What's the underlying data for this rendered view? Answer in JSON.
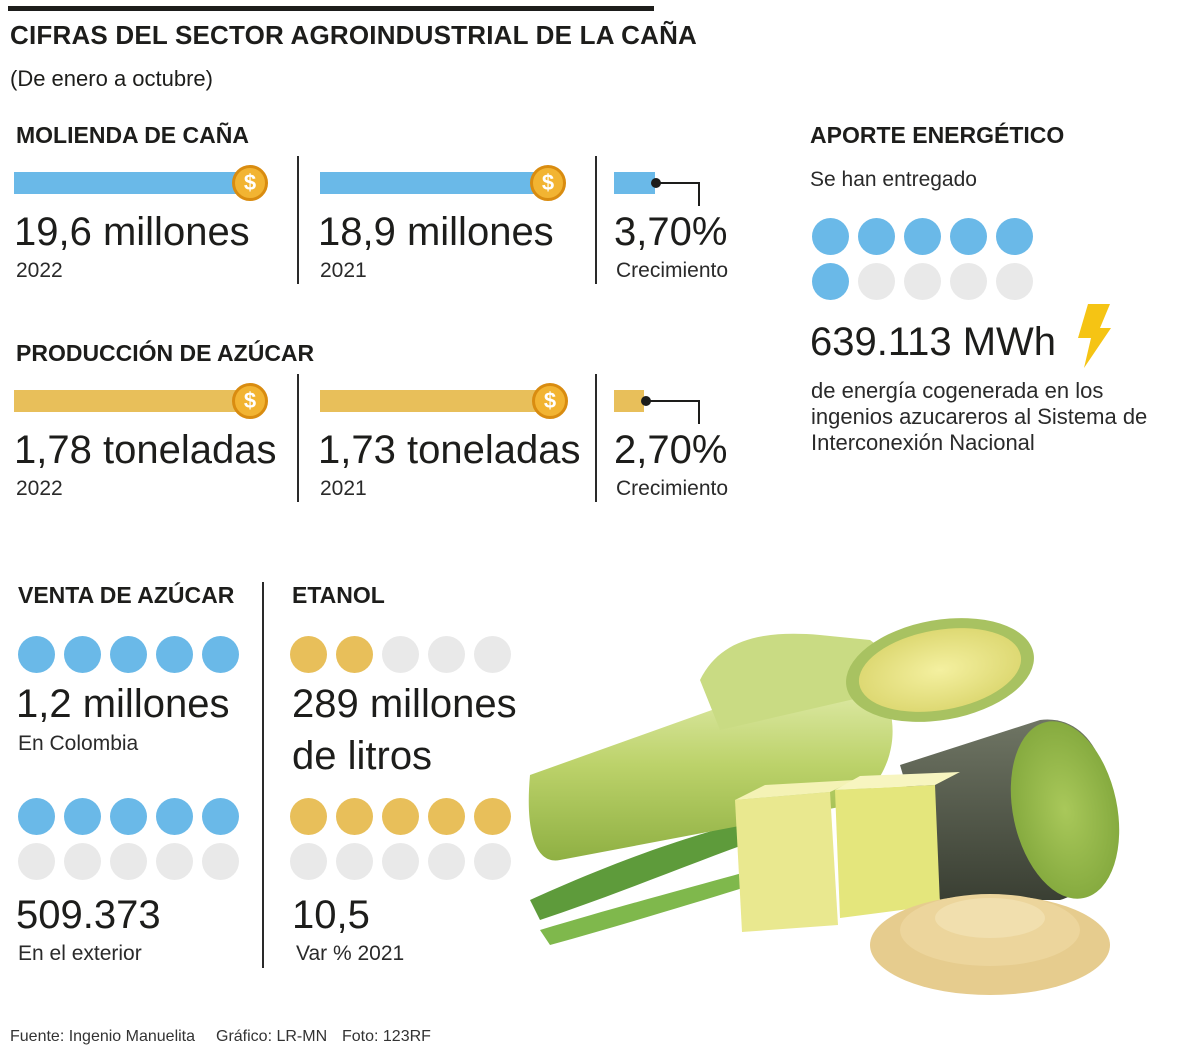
{
  "header": {
    "title": "CIFRAS DEL SECTOR AGROINDUSTRIAL DE LA CAÑA",
    "subtitle": "(De enero a octubre)"
  },
  "colors": {
    "blue": "#6ab9e8",
    "gold": "#e8bf5a",
    "empty": "#e9e9e9",
    "coin": "#f2b432"
  },
  "molienda": {
    "title": "MOLIENDA DE CAÑA",
    "y2022_value": "19,6 millones",
    "y2022_label": "2022",
    "y2021_value": "18,9 millones",
    "y2021_label": "2021",
    "growth_value": "3,70%",
    "growth_label": "Crecimiento",
    "coin_symbol": "$"
  },
  "produccion": {
    "title": "PRODUCCIÓN DE AZÚCAR",
    "y2022_value": "1,78 toneladas",
    "y2022_label": "2022",
    "y2021_value": "1,73 toneladas",
    "y2021_label": "2021",
    "growth_value": "2,70%",
    "growth_label": "Crecimiento",
    "coin_symbol": "$"
  },
  "aporte": {
    "title": "APORTE ENERGÉTICO",
    "intro": "Se han entregado",
    "value": "639.113 MWh",
    "description": "de energía cogenerada en los ingenios azucareros al Sistema de Interconexión Nacional",
    "icon": "lightning-bolt-icon"
  },
  "venta": {
    "title": "VENTA DE AZÚCAR",
    "colombia_value": "1,2 millones",
    "colombia_label": "En Colombia",
    "exterior_value": "509.373",
    "exterior_label": "En el exterior"
  },
  "etanol": {
    "title": "ETANOL",
    "value_line1": "289 millones",
    "value_line2": "de litros",
    "var_value": "10,5",
    "var_label": "Var % 2021"
  },
  "footer": {
    "source": "Fuente: Ingenio Manuelita",
    "graphic": "Gráfico: LR-MN",
    "photo": "Foto: 123RF"
  },
  "chart_data": {
    "type": "bar",
    "title": "CIFRAS DEL SECTOR AGROINDUSTRIAL DE LA CAÑA",
    "subtitle": "(De enero a octubre)",
    "series": [
      {
        "name": "Molienda de caña (millones)",
        "categories": [
          "2022",
          "2021"
        ],
        "values": [
          19.6,
          18.9
        ],
        "growth_pct": 3.7,
        "color": "blue"
      },
      {
        "name": "Producción de azúcar (toneladas)",
        "categories": [
          "2022",
          "2021"
        ],
        "values": [
          1.78,
          1.73
        ],
        "growth_pct": 2.7,
        "color": "gold"
      }
    ],
    "dot_scales": [
      {
        "name": "Aporte energético",
        "filled": 6,
        "total": 10,
        "color": "blue"
      },
      {
        "name": "Venta de azúcar en Colombia",
        "filled": 5,
        "total": 5,
        "color": "blue"
      },
      {
        "name": "Venta de azúcar en el exterior",
        "filled": 5,
        "total": 10,
        "color": "blue"
      },
      {
        "name": "Etanol",
        "filled": 2,
        "total": 5,
        "color": "gold"
      },
      {
        "name": "Etanol var % 2021",
        "filled": 5,
        "total": 10,
        "color": "gold"
      }
    ]
  }
}
